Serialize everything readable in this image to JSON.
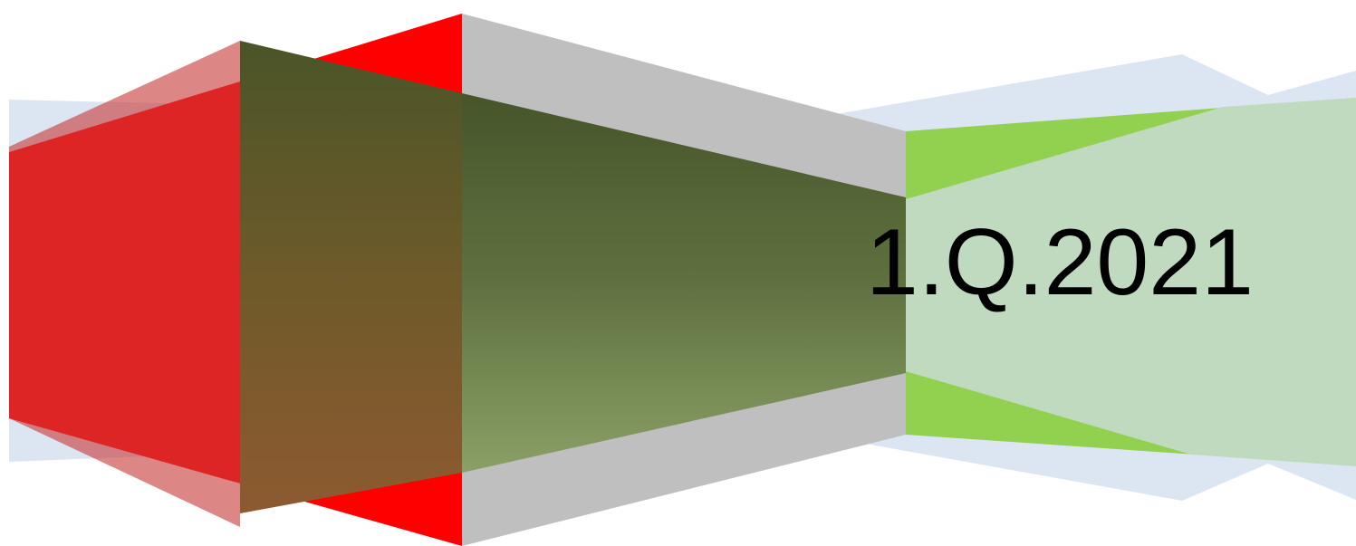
{
  "title": "1.Q.2021"
}
